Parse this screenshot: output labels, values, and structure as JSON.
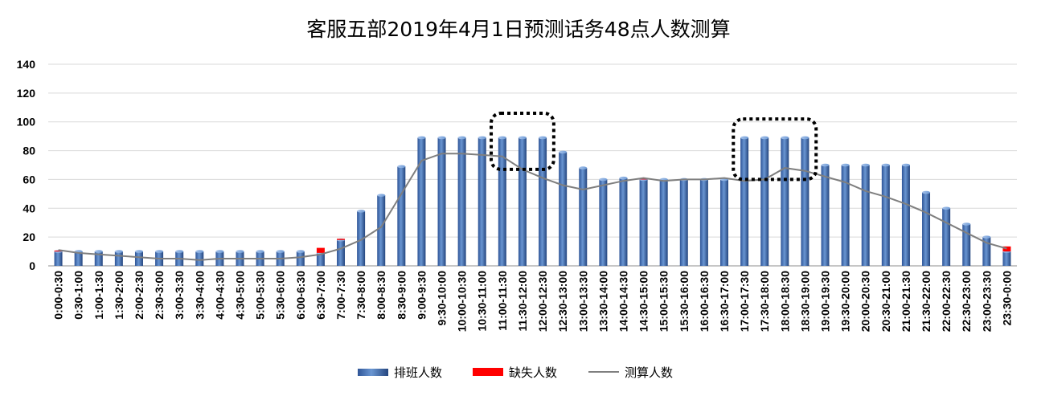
{
  "chart_data": {
    "type": "bar",
    "title": "客服五部2019年4月1日预测话务48点人数测算",
    "xlabel": "",
    "ylabel": "",
    "ylim": [
      0,
      140
    ],
    "yticks": [
      0,
      20,
      40,
      60,
      80,
      100,
      120,
      140
    ],
    "grid": true,
    "legend_position": "bottom",
    "categories": [
      "0:00-0:30",
      "0:30-1:00",
      "1:00-1:30",
      "1:30-2:00",
      "2:00-2:30",
      "2:30-3:00",
      "3:00-3:30",
      "3:30-4:00",
      "4:00-4:30",
      "4:30-5:00",
      "5:00-5:30",
      "5:30-6:00",
      "6:00-6:30",
      "6:30-7:00",
      "7:00-7:30",
      "7:30-8:00",
      "8:00-8:30",
      "8:30-9:00",
      "9:00-9:30",
      "9:30-10:00",
      "10:00-10:30",
      "10:30-11:00",
      "11:00-11:30",
      "11:30-12:00",
      "12:00-12:30",
      "12:30-13:00",
      "13:00-13:30",
      "13:30-14:00",
      "14:00-14:30",
      "14:30-15:00",
      "15:00-15:30",
      "15:30-16:00",
      "16:00-16:30",
      "16:30-17:00",
      "17:00-17:30",
      "17:30-18:00",
      "18:00-18:30",
      "18:30-19:00",
      "19:00-19:30",
      "19:30-20:00",
      "20:00-20:30",
      "20:30-21:00",
      "21:00-21:30",
      "21:30-22:00",
      "22:00-22:30",
      "22:30-23:00",
      "23:00-23:30",
      "23:30-0:00"
    ],
    "series": [
      {
        "name": "排班人数",
        "kind": "bar",
        "color": "#4F81BD",
        "values": [
          10,
          10,
          10,
          10,
          10,
          10,
          10,
          10,
          10,
          10,
          10,
          10,
          10,
          9,
          18,
          38,
          49,
          69,
          89,
          89,
          89,
          89,
          89,
          89,
          89,
          79,
          68,
          60,
          61,
          60,
          60,
          60,
          60,
          60,
          89,
          89,
          89,
          89,
          70,
          70,
          70,
          70,
          70,
          51,
          40,
          29,
          20,
          10
        ]
      },
      {
        "name": "缺失人数",
        "kind": "bar-stacked",
        "color": "#FF0000",
        "values": [
          0.6,
          0,
          0,
          0,
          0,
          0,
          0,
          0,
          0,
          0,
          0,
          0,
          0,
          3.5,
          0.8,
          0,
          0,
          0,
          0,
          0,
          0,
          0,
          0,
          0,
          0,
          0,
          0,
          0,
          0,
          1,
          0,
          0,
          0,
          0,
          0,
          0,
          0,
          0,
          0,
          0,
          0,
          0,
          0,
          0,
          0,
          0,
          0,
          3.5
        ]
      },
      {
        "name": "测算人数",
        "kind": "line",
        "color": "#7F7F7F",
        "values": [
          11,
          9,
          8,
          7,
          6,
          5,
          5,
          4,
          5,
          5,
          5,
          5,
          6,
          8,
          12,
          18,
          27,
          50,
          73,
          78,
          78,
          77,
          76,
          67,
          61,
          56,
          53,
          56,
          59,
          61,
          59,
          60,
          60,
          61,
          59,
          60,
          68,
          66,
          62,
          58,
          52,
          48,
          43,
          37,
          30,
          23,
          16,
          12
        ]
      }
    ],
    "annotations": [
      {
        "type": "dotted-box",
        "from_category": "11:00-11:30",
        "to_category": "12:00-12:30",
        "y_range": [
          67,
          106
        ]
      },
      {
        "type": "dotted-box",
        "from_category": "17:00-17:30",
        "to_category": "18:30-19:00",
        "y_range": [
          60,
          102
        ]
      }
    ]
  }
}
